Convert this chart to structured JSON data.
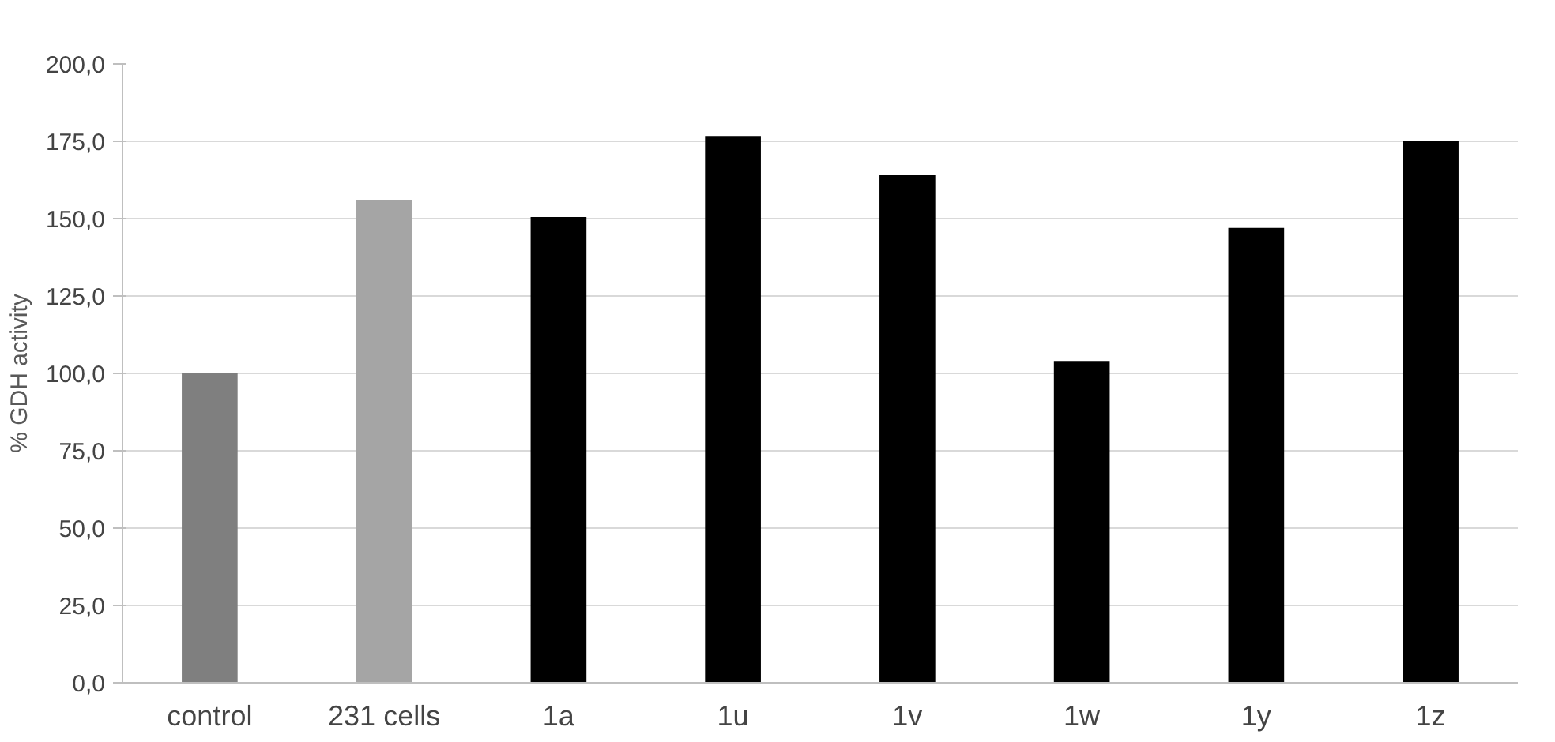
{
  "chart_data": {
    "type": "bar",
    "ylabel": "% GDH activity",
    "categories": [
      "control",
      "231 cells",
      "1a",
      "1u",
      "1v",
      "1w",
      "1y",
      "1z"
    ],
    "values": [
      100,
      156,
      150.5,
      176.7,
      164,
      104,
      147,
      175
    ],
    "colors": [
      "#7f7f7f",
      "#a5a5a5",
      "#000000",
      "#000000",
      "#000000",
      "#000000",
      "#000000",
      "#000000"
    ],
    "ylim": [
      0,
      200
    ],
    "yticks": [
      {
        "value": 0,
        "label": "0,0"
      },
      {
        "value": 25,
        "label": "25,0"
      },
      {
        "value": 50,
        "label": "50,0"
      },
      {
        "value": 75,
        "label": "75,0"
      },
      {
        "value": 100,
        "label": "100,0"
      },
      {
        "value": 125,
        "label": "125,0"
      },
      {
        "value": 150,
        "label": "150,0"
      },
      {
        "value": 175,
        "label": "175,0"
      },
      {
        "value": 200,
        "label": "200,0"
      }
    ],
    "grid": "y"
  }
}
